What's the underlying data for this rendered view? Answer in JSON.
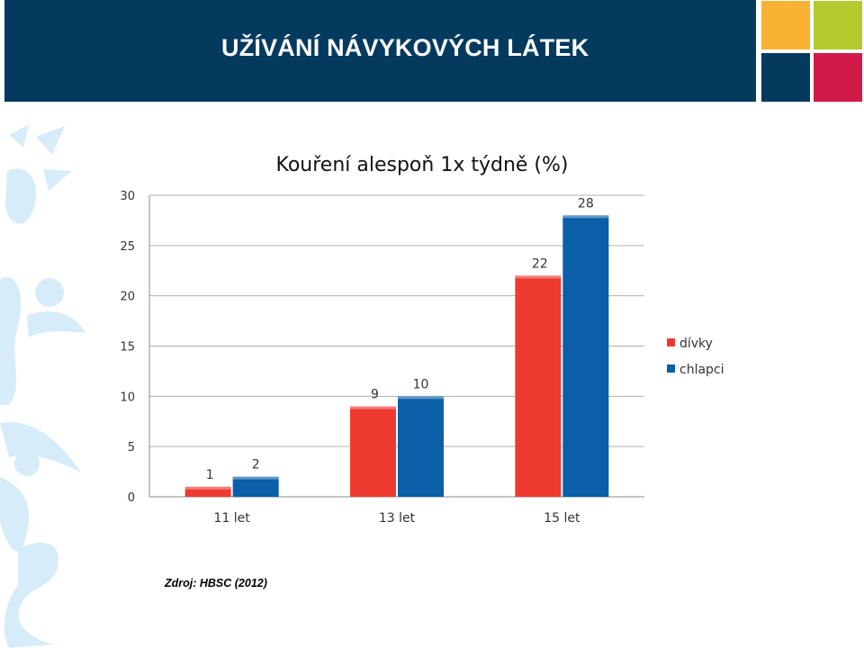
{
  "slide": {
    "title": "UŽÍVÁNÍ NÁVYKOVÝCH LÁTEK",
    "source": "Zdroj: HBSC (2012)"
  },
  "colors": {
    "header": "#043a5e",
    "accent_orange": "#f9b233",
    "accent_green": "#b5c92e",
    "accent_red": "#d11a48",
    "series_divky": "#ef3a32",
    "series_chlapci": "#0a5fa8"
  },
  "chart_data": {
    "type": "bar",
    "title": "Kouření alespoň 1x týdně (%)",
    "categories": [
      "11 let",
      "13 let",
      "15 let"
    ],
    "series": [
      {
        "name": "dívky",
        "values": [
          1,
          9,
          22
        ],
        "color": "#ef3a32"
      },
      {
        "name": "chlapci",
        "values": [
          2,
          10,
          28
        ],
        "color": "#0a5fa8"
      }
    ],
    "ylim": [
      0,
      30
    ],
    "yticks": [
      0,
      5,
      10,
      15,
      20,
      25,
      30
    ],
    "grid": true,
    "legend": "right"
  }
}
